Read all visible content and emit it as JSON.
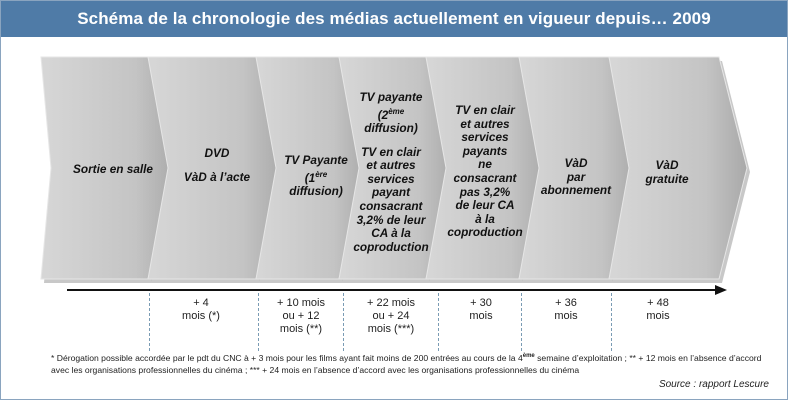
{
  "title": "Schéma de la chronologie des médias actuellement en vigueur depuis… 2009",
  "stages": [
    {
      "lines": [
        "Sortie en salle"
      ]
    },
    {
      "lines": [
        "DVD",
        "",
        "VàD à l’acte"
      ]
    },
    {
      "lines": [
        "TV Payante",
        "(1ère",
        "diffusion)"
      ],
      "sup": "ère"
    },
    {
      "lines": [
        "TV payante",
        "(2ème",
        "diffusion)",
        "",
        "TV en clair",
        "et autres",
        "services",
        "payant",
        "consacrant",
        "3,2% de leur",
        "CA à la",
        "coproduction"
      ],
      "sup": "ème"
    },
    {
      "lines": [
        "TV en clair",
        "et autres",
        "services",
        "payants",
        "ne",
        "consacrant",
        "pas 3,2%",
        "de leur CA",
        "à la",
        "coproduction"
      ]
    },
    {
      "lines": [
        "VàD",
        "par",
        "abonnement"
      ]
    },
    {
      "lines": [
        "VàD",
        "gratuite"
      ]
    }
  ],
  "timeline": [
    {
      "lines": [
        "+ 4",
        "mois (*)"
      ]
    },
    {
      "lines": [
        "+ 10 mois",
        "ou + 12",
        "mois (**)"
      ]
    },
    {
      "lines": [
        "+ 22 mois",
        "ou + 24",
        "mois (***)"
      ]
    },
    {
      "lines": [
        "+ 30",
        "mois"
      ]
    },
    {
      "lines": [
        "+ 36",
        "mois"
      ]
    },
    {
      "lines": [
        "+ 48",
        "mois"
      ]
    }
  ],
  "footnote": {
    "part1": "* Dérogation possible accordée par le pdt du CNC à + 3 mois pour les films ayant fait moins de 200 entrées au cours de la 4",
    "sup": "ème",
    "part2": " semaine d’exploitation ; ** + 12 mois en l’absence d’accord avec les organisations professionnelles du cinéma ; *** + 24 mois en l’absence d’accord avec les organisations professionnelles du cinéma"
  },
  "source": "Source : rapport Lescure",
  "colors": {
    "header": "#4f7ba7",
    "chevron": "#c9c9c9",
    "chevron_edge": "#e6e6e6",
    "chevron_shadow": "#9a9a9a"
  }
}
